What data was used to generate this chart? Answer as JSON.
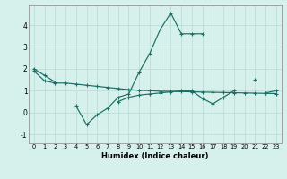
{
  "xlabel": "Humidex (Indice chaleur)",
  "x": [
    0,
    1,
    2,
    3,
    4,
    5,
    6,
    7,
    8,
    9,
    10,
    11,
    12,
    13,
    14,
    15,
    16,
    17,
    18,
    19,
    20,
    21,
    22,
    23
  ],
  "line1": [
    2.0,
    1.7,
    1.4,
    null,
    0.3,
    -0.55,
    -0.1,
    0.2,
    0.7,
    0.85,
    1.85,
    2.7,
    3.8,
    4.55,
    3.6,
    3.6,
    3.6,
    null,
    null,
    null,
    null,
    1.5,
    null,
    null
  ],
  "line2": [
    1.9,
    1.45,
    1.35,
    1.35,
    1.3,
    1.25,
    1.2,
    1.15,
    1.1,
    1.05,
    1.02,
    1.0,
    0.98,
    0.97,
    0.96,
    0.95,
    0.94,
    0.93,
    0.92,
    0.91,
    0.9,
    0.89,
    0.88,
    0.87
  ],
  "line3": [
    null,
    null,
    null,
    null,
    null,
    null,
    null,
    null,
    0.5,
    0.7,
    0.8,
    0.85,
    0.9,
    0.95,
    1.0,
    1.0,
    0.65,
    0.4,
    0.7,
    1.0,
    null,
    null,
    0.9,
    1.0
  ],
  "ylim": [
    -1.4,
    4.9
  ],
  "xlim": [
    -0.5,
    23.5
  ],
  "yticks": [
    -1,
    0,
    1,
    2,
    3,
    4
  ],
  "xticks": [
    0,
    1,
    2,
    3,
    4,
    5,
    6,
    7,
    8,
    9,
    10,
    11,
    12,
    13,
    14,
    15,
    16,
    17,
    18,
    19,
    20,
    21,
    22,
    23
  ],
  "bg_color": "#d6f0ec",
  "grid_color": "#b8d8d4",
  "line_color": "#1a6e64",
  "marker": "+"
}
